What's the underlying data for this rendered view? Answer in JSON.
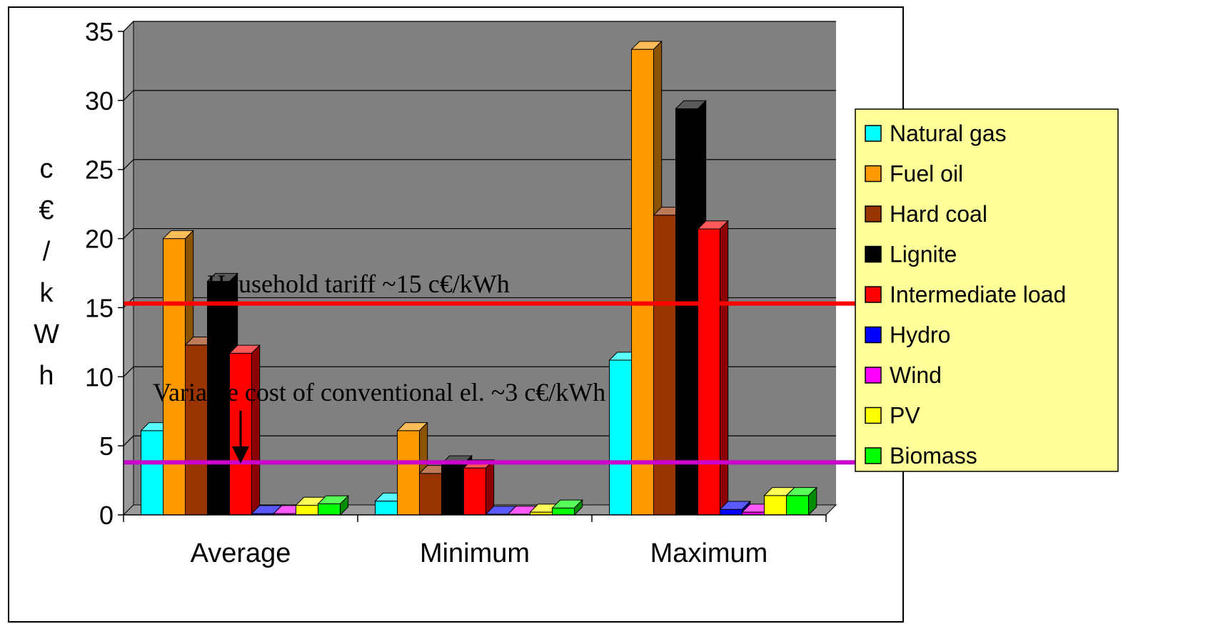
{
  "chart_data": {
    "type": "bar",
    "ylabel": "c€/kWh",
    "ylim": [
      0,
      35
    ],
    "yticks": [
      0,
      5,
      10,
      15,
      20,
      25,
      30,
      35
    ],
    "categories": [
      "Average",
      "Minimum",
      "Maximum"
    ],
    "grid": true,
    "legend_position": "right",
    "series": [
      {
        "name": "Natural gas",
        "color": "#00ffff",
        "values": [
          6.1,
          1.0,
          11.2
        ]
      },
      {
        "name": "Fuel oil",
        "color": "#ff9900",
        "values": [
          20.0,
          6.1,
          33.7
        ]
      },
      {
        "name": "Hard coal",
        "color": "#993300",
        "values": [
          12.3,
          3.0,
          21.7
        ]
      },
      {
        "name": "Lignite",
        "color": "#000000",
        "values": [
          16.9,
          3.7,
          29.4
        ]
      },
      {
        "name": "Intermediate load",
        "color": "#ff0000",
        "values": [
          11.7,
          3.4,
          20.7
        ]
      },
      {
        "name": "Hydro",
        "color": "#0000ff",
        "values": [
          0.1,
          0.05,
          0.4
        ]
      },
      {
        "name": "Wind",
        "color": "#ff00ff",
        "values": [
          0.1,
          0.05,
          0.2
        ]
      },
      {
        "name": "PV",
        "color": "#ffff00",
        "values": [
          0.7,
          0.2,
          1.4
        ]
      },
      {
        "name": "Biomass",
        "color": "#00ff00",
        "values": [
          0.8,
          0.5,
          1.4
        ]
      }
    ],
    "reference_lines": [
      {
        "label": "Household tariff ~15 c€/kWh",
        "value": 15.3,
        "color": "#ff0000"
      },
      {
        "label": "Variable cost of  conventional el. ~3 c€/kWh",
        "value": 3.8,
        "color": "#cc00cc"
      }
    ]
  },
  "colors": {
    "plot_background": "#808080",
    "legend_background": "#ffff99",
    "plot_wall": "#9a9a9a"
  }
}
